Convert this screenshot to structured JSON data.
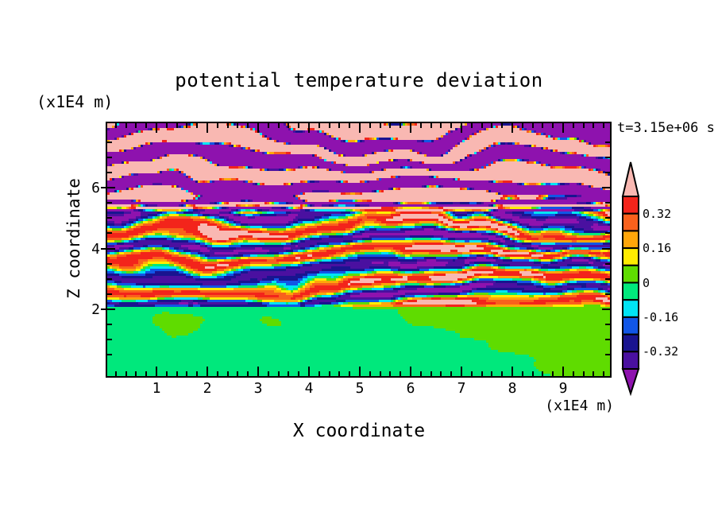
{
  "page": {
    "background": "#FFFFFF",
    "text_color": "#000000"
  },
  "chart_data": {
    "type": "filled_contour",
    "title": "potential temperature deviation",
    "xlabel": "X coordinate",
    "ylabel": "Z coordinate",
    "x_unit_label": "(x1E4 m)",
    "z_unit_label": "(x1E4 m)",
    "time_label": "t=3.15e+06 s",
    "xlim": [
      0,
      9.9
    ],
    "zlim": [
      -0.2,
      8.1
    ],
    "grid": false,
    "x_major_ticks": [
      {
        "value": 1,
        "label": "1"
      },
      {
        "value": 2,
        "label": "2"
      },
      {
        "value": 3,
        "label": "3"
      },
      {
        "value": 4,
        "label": "4"
      },
      {
        "value": 5,
        "label": "5"
      },
      {
        "value": 6,
        "label": "6"
      },
      {
        "value": 7,
        "label": "7"
      },
      {
        "value": 8,
        "label": "8"
      },
      {
        "value": 9,
        "label": "9"
      }
    ],
    "x_minor_step": 0.2,
    "z_major_ticks": [
      {
        "value": 2,
        "label": "2"
      },
      {
        "value": 4,
        "label": "4"
      },
      {
        "value": 6,
        "label": "6"
      }
    ],
    "z_minor_step": 0.5,
    "colorbar": {
      "position": "right",
      "levels": [
        -0.4,
        -0.32,
        -0.24,
        -0.16,
        -0.08,
        0,
        0.08,
        0.16,
        0.24,
        0.32,
        0.4
      ],
      "labels": [
        {
          "value": 0.32,
          "text": "0.32"
        },
        {
          "value": 0.16,
          "text": "0.16"
        },
        {
          "value": 0,
          "text": "0"
        },
        {
          "value": -0.16,
          "text": "-0.16"
        },
        {
          "value": -0.32,
          "text": "-0.32"
        }
      ],
      "segment_colors_ascending": [
        "#4A10A0",
        "#191490",
        "#1156E6",
        "#00E4F4",
        "#00E87C",
        "#5FDC00",
        "#FFEC00",
        "#FFA60A",
        "#F9611C",
        "#F3241B"
      ],
      "under_color": "#8E12AE",
      "over_color": "#F9B8B2",
      "outline_color": "#000000"
    },
    "field_structure": {
      "description": "Horizontally striated potential-temperature deviation field from a stratified turbulence simulation; deviations are near zero below z=2e4 m, fine-scale stripes spanning the full color range between z=2e4 and 5.5e4 m, and broad saturated bands exceeding +/-0.4 above z=5.5e4 m.",
      "regions": [
        {
          "z_range": [
            0,
            2.0
          ],
          "character": "smooth near-zero blobs (two green shades)",
          "amplitude": 0.07,
          "band_period_z": 2.5
        },
        {
          "z_range": [
            2.0,
            5.5
          ],
          "character": "thin wavy horizontal stripes, full rainbow range",
          "amplitude": 0.4,
          "band_period_z": 0.8
        },
        {
          "z_range": [
            5.5,
            8.1
          ],
          "character": "thick alternating bands saturated beyond +/-0.4 (pink / purple)",
          "amplitude": 0.95,
          "band_period_z": 1.15
        }
      ]
    }
  }
}
